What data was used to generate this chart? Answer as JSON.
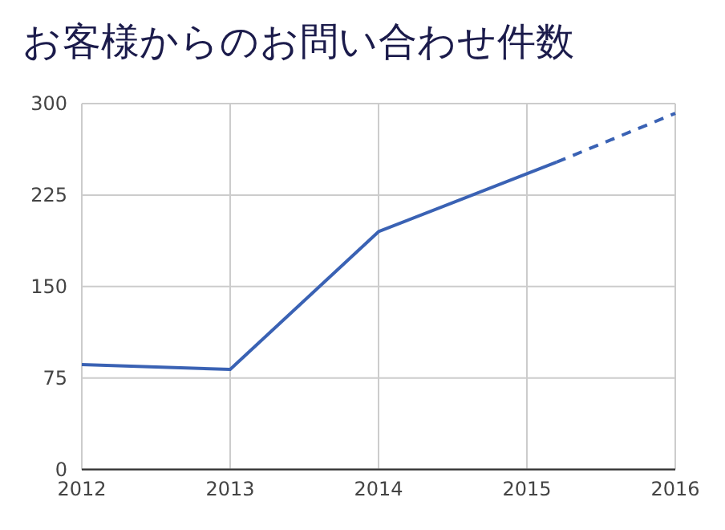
{
  "chart_data": {
    "type": "line",
    "title": "お客様からのお問い合わせ件数",
    "series": [
      {
        "color": "#3a62b4",
        "line_style": "solid",
        "x": [
          2012,
          2013,
          2014,
          2015.2
        ],
        "values": [
          86,
          82,
          195,
          252
        ]
      },
      {
        "color": "#3a62b4",
        "line_style": "dashed",
        "x": [
          2015.2,
          2016
        ],
        "values": [
          252,
          292
        ]
      }
    ],
    "xlim": [
      2012,
      2016
    ],
    "xticks": [
      2012,
      2013,
      2014,
      2015,
      2016
    ],
    "ylim": [
      0,
      300
    ],
    "yticks": [
      0,
      75,
      150,
      225,
      300
    ],
    "grid": true,
    "marker": "none"
  }
}
